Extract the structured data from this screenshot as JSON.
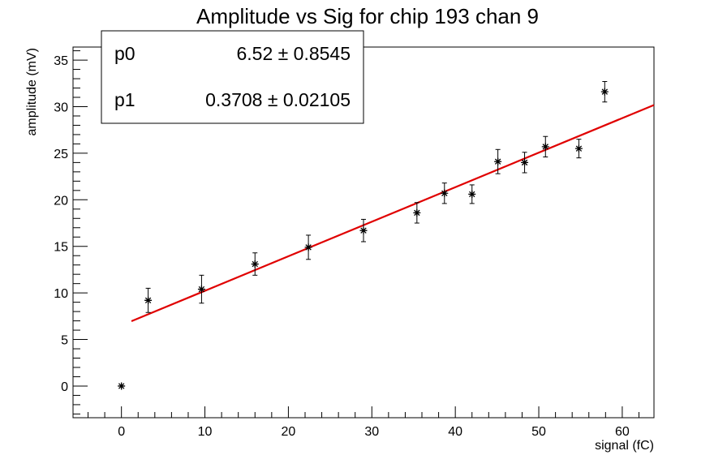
{
  "chart_data": {
    "type": "scatter",
    "title": "Amplitude vs Sig for chip 193 chan 9",
    "xlabel": "signal (fC)",
    "ylabel": "amplitude (mV)",
    "xlim": [
      -5.8,
      63.8
    ],
    "ylim": [
      -3.4,
      36.4
    ],
    "x_ticks": [
      0,
      10,
      20,
      30,
      40,
      50,
      60
    ],
    "y_ticks": [
      0,
      5,
      10,
      15,
      20,
      25,
      30,
      35
    ],
    "grid": false,
    "legend": "none",
    "colors": {
      "points": "#000000",
      "fit_line": "#e00000"
    },
    "series": [
      {
        "marker": "star",
        "x": [
          0,
          3.2,
          9.6,
          16.0,
          22.4,
          29.0,
          35.4,
          38.7,
          42.0,
          45.1,
          48.3,
          50.8,
          54.8,
          57.9
        ],
        "y": [
          0,
          9.2,
          10.4,
          13.1,
          14.9,
          16.7,
          18.6,
          20.7,
          20.6,
          24.1,
          24.0,
          25.7,
          25.5,
          31.6
        ],
        "yerr": [
          0.0,
          1.3,
          1.5,
          1.2,
          1.3,
          1.2,
          1.1,
          1.1,
          1.0,
          1.3,
          1.1,
          1.1,
          1.0,
          1.1
        ]
      }
    ],
    "fit": {
      "p0": 6.52,
      "p1": 0.3708,
      "x_range": [
        1.2,
        63.8
      ]
    },
    "stats_box": [
      {
        "name": "p0",
        "value": "6.52 ± 0.8545"
      },
      {
        "name": "p1",
        "value": "0.3708 ± 0.02105"
      }
    ]
  }
}
